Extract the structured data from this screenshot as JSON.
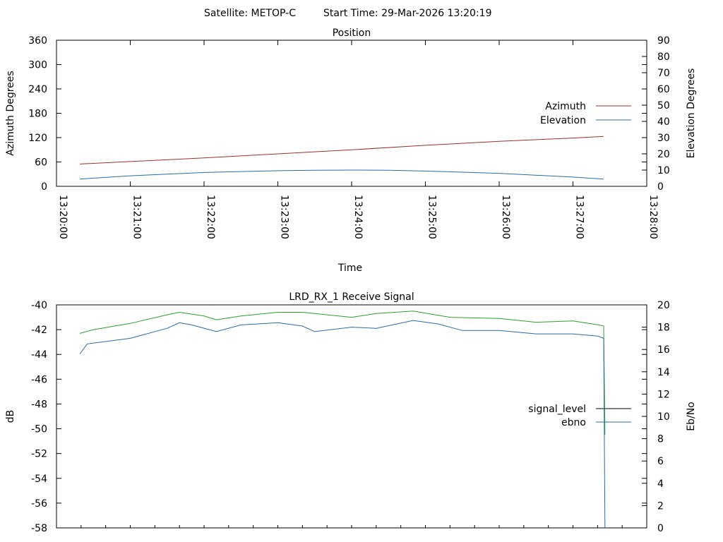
{
  "header": {
    "satellite": "Satellite: METOP-C",
    "start_time": "Start Time: 29-Mar-2026 13:20:19"
  },
  "chart_data": [
    {
      "type": "line",
      "title": "Position",
      "xlabel": "Time",
      "ylabel": "Azimuth Degrees",
      "y2label": "Elevation Degrees",
      "xlim": [
        0,
        480
      ],
      "ylim": [
        0,
        360
      ],
      "y2lim": [
        0,
        90
      ],
      "x_ticks": [
        0,
        60,
        120,
        180,
        240,
        300,
        360,
        420,
        480
      ],
      "x_tick_labels": [
        "13:20:00",
        "13:21:00",
        "13:22:00",
        "13:23:00",
        "13:24:00",
        "13:25:00",
        "13:26:00",
        "13:27:00",
        "13:28:00"
      ],
      "y_ticks": [
        "0",
        "60",
        "120",
        "180",
        "240",
        "300",
        "360"
      ],
      "y2_ticks": [
        "0",
        "10",
        "20",
        "30",
        "40",
        "50",
        "60",
        "70",
        "80",
        "90"
      ],
      "legend_position": "right",
      "series": [
        {
          "name": "Azimuth",
          "axis": "y",
          "color": "#a0302a",
          "x": [
            19,
            60,
            120,
            180,
            240,
            300,
            360,
            420,
            445
          ],
          "y": [
            55,
            61,
            70,
            80,
            90,
            101,
            111,
            119,
            123
          ]
        },
        {
          "name": "Elevation",
          "axis": "y2",
          "color": "#2a6aa8",
          "x": [
            19,
            60,
            120,
            180,
            210,
            240,
            270,
            300,
            360,
            420,
            445
          ],
          "y": [
            4.5,
            6.5,
            8.5,
            9.6,
            9.9,
            10.0,
            9.9,
            9.4,
            8.0,
            5.7,
            4.5
          ]
        }
      ]
    },
    {
      "type": "line",
      "title": "LRD_RX_1 Receive Signal",
      "xlabel": "",
      "ylabel": "dB",
      "y2label": "Eb/No",
      "xlim": [
        0,
        480
      ],
      "ylim": [
        -58,
        -40
      ],
      "y2lim": [
        0,
        20
      ],
      "y_ticks": [
        "-40",
        "-42",
        "-44",
        "-46",
        "-48",
        "-50",
        "-52",
        "-54",
        "-56",
        "-58"
      ],
      "y2_ticks": [
        "0",
        "2",
        "4",
        "6",
        "8",
        "10",
        "12",
        "14",
        "16",
        "18",
        "20"
      ],
      "legend_position": "right",
      "series": [
        {
          "name": "signal_level",
          "axis": "y",
          "color": "#2ca02c",
          "legend_color": "#000000",
          "x": [
            19,
            30,
            60,
            90,
            100,
            120,
            130,
            150,
            180,
            200,
            240,
            260,
            290,
            320,
            360,
            390,
            420,
            440,
            445,
            446
          ],
          "y": [
            -42.3,
            -42.0,
            -41.5,
            -40.8,
            -40.6,
            -40.9,
            -41.2,
            -40.9,
            -40.6,
            -40.6,
            -41.0,
            -40.7,
            -40.5,
            -41.0,
            -41.1,
            -41.4,
            -41.3,
            -41.6,
            -41.7,
            -50.5
          ]
        },
        {
          "name": "ebno",
          "axis": "y2",
          "color": "#2a6aa8",
          "x": [
            19,
            25,
            60,
            90,
            100,
            110,
            130,
            150,
            180,
            200,
            210,
            240,
            260,
            290,
            310,
            330,
            360,
            390,
            420,
            440,
            445,
            446
          ],
          "y": [
            15.6,
            16.5,
            17.0,
            17.9,
            18.4,
            18.2,
            17.6,
            18.2,
            18.4,
            18.1,
            17.6,
            18.0,
            17.9,
            18.6,
            18.3,
            17.7,
            17.7,
            17.4,
            17.4,
            17.2,
            17.0,
            0
          ]
        }
      ]
    }
  ]
}
